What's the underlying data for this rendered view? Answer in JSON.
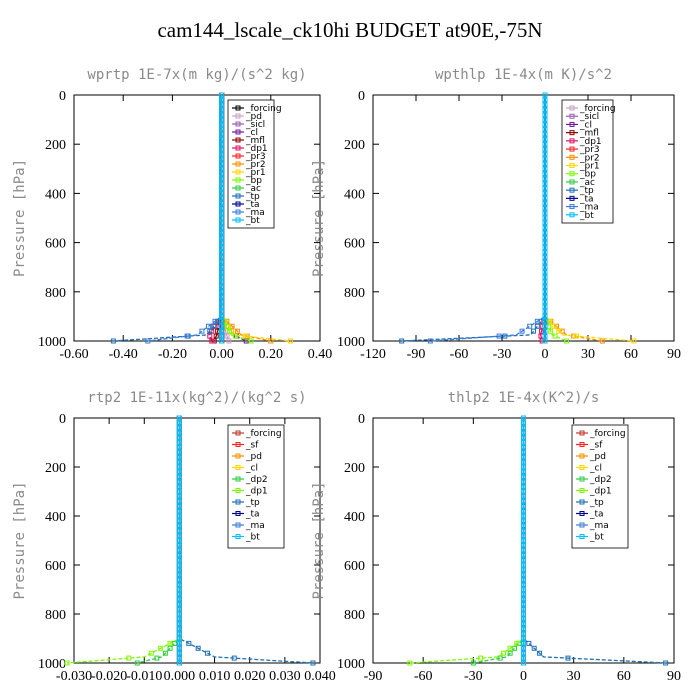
{
  "title": "cam144_lscale_ck10hi  BUDGET at90E,-75N",
  "chart_data": [
    {
      "type": "line",
      "title": "wprtp   1E-7x(m kg)/(s^2 kg)",
      "ylabel": "Pressure [hPa]",
      "xlim": [
        -0.6,
        0.4
      ],
      "ylim": [
        1000,
        0
      ],
      "xticks": [
        "-0.60",
        "-0.40",
        "-0.20",
        "0.00",
        "0.20",
        "0.40"
      ],
      "xtick_values": [
        -0.6,
        -0.4,
        -0.2,
        0.0,
        0.2,
        0.4
      ],
      "yticks": [
        0,
        200,
        400,
        600,
        800,
        1000
      ],
      "legend_position": "top-right",
      "series": [
        {
          "name": "_forcing",
          "color": "#000000",
          "x": [
            0,
            0,
            0,
            0,
            0
          ],
          "y": [
            0,
            400,
            900,
            975,
            1000
          ]
        },
        {
          "name": "_pd",
          "color": "#c8a2c8",
          "x": [
            0,
            0,
            0,
            0.02,
            0.03
          ],
          "y": [
            0,
            400,
            900,
            975,
            1000
          ]
        },
        {
          "name": "_sicl",
          "color": "#9b59b6",
          "x": [
            0,
            0,
            0,
            0,
            0
          ],
          "y": [
            0,
            400,
            900,
            975,
            1000
          ]
        },
        {
          "name": "_cl",
          "color": "#6a1b9a",
          "x": [
            0,
            0,
            0,
            0.05,
            0.1
          ],
          "y": [
            0,
            400,
            900,
            975,
            1000
          ]
        },
        {
          "name": "_mfl",
          "color": "#8b0000",
          "x": [
            0,
            0,
            0,
            -0.02,
            -0.03
          ],
          "y": [
            0,
            400,
            900,
            975,
            1000
          ]
        },
        {
          "name": "_dp1",
          "color": "#e0105f",
          "x": [
            0,
            0,
            0,
            -0.05,
            -0.04
          ],
          "y": [
            0,
            400,
            900,
            975,
            1000
          ]
        },
        {
          "name": "_pr3",
          "color": "#ff2020",
          "x": [
            0,
            0,
            0,
            0,
            0
          ],
          "y": [
            0,
            400,
            900,
            975,
            1000
          ]
        },
        {
          "name": "_pr2",
          "color": "#ff8c00",
          "x": [
            0,
            0,
            0,
            0.08,
            0.2
          ],
          "y": [
            0,
            400,
            900,
            975,
            1000
          ]
        },
        {
          "name": "_pr1",
          "color": "#ffd700",
          "x": [
            0,
            0,
            0,
            0.05,
            0.28
          ],
          "y": [
            0,
            400,
            900,
            975,
            1000
          ]
        },
        {
          "name": "_bp",
          "color": "#7cfc00",
          "x": [
            0,
            0,
            0,
            0.04,
            0.12
          ],
          "y": [
            0,
            400,
            900,
            975,
            1000
          ]
        },
        {
          "name": "_ac",
          "color": "#2ecc40",
          "x": [
            0,
            0,
            0,
            0,
            0
          ],
          "y": [
            0,
            400,
            900,
            975,
            1000
          ]
        },
        {
          "name": "_tp",
          "color": "#1f6fb4",
          "x": [
            0,
            0,
            0,
            -0.06,
            -0.44
          ],
          "y": [
            0,
            400,
            900,
            975,
            1000
          ]
        },
        {
          "name": "_ta",
          "color": "#00008b",
          "x": [
            0,
            0,
            0,
            0,
            0
          ],
          "y": [
            0,
            400,
            900,
            975,
            1000
          ]
        },
        {
          "name": "_ma",
          "color": "#3a7dd8",
          "x": [
            0,
            0,
            0,
            -0.1,
            -0.3
          ],
          "y": [
            0,
            400,
            900,
            975,
            1000
          ]
        },
        {
          "name": "_bt",
          "color": "#00bfff",
          "x": [
            0,
            0,
            0,
            0,
            0
          ],
          "y": [
            0,
            400,
            900,
            975,
            1000
          ]
        }
      ]
    },
    {
      "type": "line",
      "title": "wpthlp   1E-4x(m K)/s^2",
      "ylabel": "Pressure [hPa]",
      "xlim": [
        -120,
        90
      ],
      "ylim": [
        1000,
        0
      ],
      "xticks": [
        "-120",
        "-90",
        "-60",
        "-30",
        "0",
        "30",
        "60",
        "90"
      ],
      "xtick_values": [
        -120,
        -90,
        -60,
        -30,
        0,
        30,
        60,
        90
      ],
      "yticks": [
        0,
        200,
        400,
        600,
        800,
        1000
      ],
      "legend_position": "top-right",
      "series": [
        {
          "name": "_forcing",
          "color": "#c8a2c8",
          "x": [
            0,
            0,
            0,
            0,
            0
          ],
          "y": [
            0,
            400,
            900,
            975,
            1000
          ]
        },
        {
          "name": "_sicl",
          "color": "#9b59b6",
          "x": [
            0,
            0,
            0,
            0,
            0
          ],
          "y": [
            0,
            400,
            900,
            975,
            1000
          ]
        },
        {
          "name": "_cl",
          "color": "#6a1b9a",
          "x": [
            0,
            0,
            0,
            0,
            0
          ],
          "y": [
            0,
            400,
            900,
            975,
            1000
          ]
        },
        {
          "name": "_mfl",
          "color": "#8b0000",
          "x": [
            0,
            0,
            0,
            0,
            0
          ],
          "y": [
            0,
            400,
            900,
            975,
            1000
          ]
        },
        {
          "name": "_dp1",
          "color": "#e0105f",
          "x": [
            0,
            0,
            0,
            -3,
            -2
          ],
          "y": [
            0,
            400,
            900,
            975,
            1000
          ]
        },
        {
          "name": "_pr3",
          "color": "#ff2020",
          "x": [
            0,
            0,
            0,
            0,
            0
          ],
          "y": [
            0,
            400,
            900,
            975,
            1000
          ]
        },
        {
          "name": "_pr2",
          "color": "#ff8c00",
          "x": [
            0,
            0,
            0,
            15,
            40
          ],
          "y": [
            0,
            400,
            900,
            975,
            1000
          ]
        },
        {
          "name": "_pr1",
          "color": "#ffd700",
          "x": [
            0,
            0,
            0,
            12,
            62
          ],
          "y": [
            0,
            400,
            900,
            975,
            1000
          ]
        },
        {
          "name": "_bp",
          "color": "#7cfc00",
          "x": [
            0,
            0,
            0,
            5,
            15
          ],
          "y": [
            0,
            400,
            900,
            975,
            1000
          ]
        },
        {
          "name": "_ac",
          "color": "#2ecc40",
          "x": [
            0,
            0,
            0,
            0,
            0
          ],
          "y": [
            0,
            400,
            900,
            975,
            1000
          ]
        },
        {
          "name": "_tp",
          "color": "#1f6fb4",
          "x": [
            0,
            0,
            0,
            -10,
            -100
          ],
          "y": [
            0,
            400,
            900,
            975,
            1000
          ]
        },
        {
          "name": "_ta",
          "color": "#00008b",
          "x": [
            0,
            0,
            0,
            0,
            0
          ],
          "y": [
            0,
            400,
            900,
            975,
            1000
          ]
        },
        {
          "name": "_ma",
          "color": "#3a7dd8",
          "x": [
            0,
            0,
            0,
            -20,
            -80
          ],
          "y": [
            0,
            400,
            900,
            975,
            1000
          ]
        },
        {
          "name": "_bt",
          "color": "#00bfff",
          "x": [
            0,
            0,
            0,
            0,
            0
          ],
          "y": [
            0,
            400,
            900,
            975,
            1000
          ]
        }
      ]
    },
    {
      "type": "line",
      "title": "rtp2   1E-11x(kg^2)/(kg^2 s)",
      "ylabel": "Pressure [hPa]",
      "xlim": [
        -0.03,
        0.04
      ],
      "ylim": [
        1000,
        0
      ],
      "xticks": [
        "-0.030",
        "-0.020",
        "-0.010",
        "0.000",
        "0.010",
        "0.020",
        "0.030",
        "0.040"
      ],
      "xtick_values": [
        -0.03,
        -0.02,
        -0.01,
        0.0,
        0.01,
        0.02,
        0.03,
        0.04
      ],
      "yticks": [
        0,
        200,
        400,
        600,
        800,
        1000
      ],
      "legend_position": "top-right",
      "series": [
        {
          "name": "_forcing",
          "color": "#c0392b",
          "x": [
            0,
            0,
            0,
            0,
            0
          ],
          "y": [
            0,
            400,
            900,
            975,
            1000
          ]
        },
        {
          "name": "_sf",
          "color": "#ff2020",
          "x": [
            0,
            0,
            0,
            0,
            0
          ],
          "y": [
            0,
            400,
            900,
            975,
            1000
          ]
        },
        {
          "name": "_pd",
          "color": "#ff8c00",
          "x": [
            0,
            0,
            0,
            0,
            0
          ],
          "y": [
            0,
            400,
            900,
            975,
            1000
          ]
        },
        {
          "name": "_cl",
          "color": "#ffd700",
          "x": [
            0,
            0,
            0,
            0,
            0
          ],
          "y": [
            0,
            400,
            900,
            975,
            1000
          ]
        },
        {
          "name": "_dp2",
          "color": "#2ecc40",
          "x": [
            0,
            0,
            0,
            -0.005,
            -0.012
          ],
          "y": [
            0,
            400,
            900,
            975,
            1000
          ]
        },
        {
          "name": "_dp1",
          "color": "#7cfc00",
          "x": [
            0,
            0,
            0,
            -0.01,
            -0.032
          ],
          "y": [
            0,
            400,
            900,
            975,
            1000
          ]
        },
        {
          "name": "_tp",
          "color": "#1f6fb4",
          "x": [
            0,
            0,
            0,
            0.01,
            0.038
          ],
          "y": [
            0,
            400,
            900,
            975,
            1000
          ]
        },
        {
          "name": "_ta",
          "color": "#00008b",
          "x": [
            0,
            0,
            0,
            0,
            0
          ],
          "y": [
            0,
            400,
            900,
            975,
            1000
          ]
        },
        {
          "name": "_ma",
          "color": "#3a7dd8",
          "x": [
            0,
            0,
            0,
            0,
            0
          ],
          "y": [
            0,
            400,
            900,
            975,
            1000
          ]
        },
        {
          "name": "_bt",
          "color": "#00bfff",
          "x": [
            0,
            0,
            0,
            0,
            0
          ],
          "y": [
            0,
            400,
            900,
            975,
            1000
          ]
        }
      ]
    },
    {
      "type": "line",
      "title": "thlp2   1E-4x(K^2)/s",
      "ylabel": "Pressure [hPa]",
      "xlim": [
        -90,
        90
      ],
      "ylim": [
        1000,
        0
      ],
      "xticks": [
        "-90",
        "-60",
        "-30",
        "0",
        "30",
        "60",
        "90"
      ],
      "xtick_values": [
        -90,
        -60,
        -30,
        0,
        30,
        60,
        90
      ],
      "yticks": [
        0,
        200,
        400,
        600,
        800,
        1000
      ],
      "legend_position": "top-right",
      "series": [
        {
          "name": "_forcing",
          "color": "#c0392b",
          "x": [
            0,
            0,
            0,
            0,
            0
          ],
          "y": [
            0,
            400,
            900,
            975,
            1000
          ]
        },
        {
          "name": "_sf",
          "color": "#ff2020",
          "x": [
            0,
            0,
            0,
            0,
            0
          ],
          "y": [
            0,
            400,
            900,
            975,
            1000
          ]
        },
        {
          "name": "_pd",
          "color": "#ff8c00",
          "x": [
            0,
            0,
            0,
            0,
            0
          ],
          "y": [
            0,
            400,
            900,
            975,
            1000
          ]
        },
        {
          "name": "_cl",
          "color": "#ffd700",
          "x": [
            0,
            0,
            0,
            0,
            0
          ],
          "y": [
            0,
            400,
            900,
            975,
            1000
          ]
        },
        {
          "name": "_dp2",
          "color": "#2ecc40",
          "x": [
            0,
            0,
            0,
            -10,
            -30
          ],
          "y": [
            0,
            400,
            900,
            975,
            1000
          ]
        },
        {
          "name": "_dp1",
          "color": "#7cfc00",
          "x": [
            0,
            0,
            0,
            -15,
            -68
          ],
          "y": [
            0,
            400,
            900,
            975,
            1000
          ]
        },
        {
          "name": "_tp",
          "color": "#1f6fb4",
          "x": [
            0,
            0,
            0,
            12,
            85
          ],
          "y": [
            0,
            400,
            900,
            975,
            1000
          ]
        },
        {
          "name": "_ta",
          "color": "#00008b",
          "x": [
            0,
            0,
            0,
            0,
            0
          ],
          "y": [
            0,
            400,
            900,
            975,
            1000
          ]
        },
        {
          "name": "_ma",
          "color": "#3a7dd8",
          "x": [
            0,
            0,
            0,
            0,
            0
          ],
          "y": [
            0,
            400,
            900,
            975,
            1000
          ]
        },
        {
          "name": "_bt",
          "color": "#00bfff",
          "x": [
            0,
            0,
            0,
            0,
            0
          ],
          "y": [
            0,
            400,
            900,
            975,
            1000
          ]
        }
      ]
    }
  ]
}
